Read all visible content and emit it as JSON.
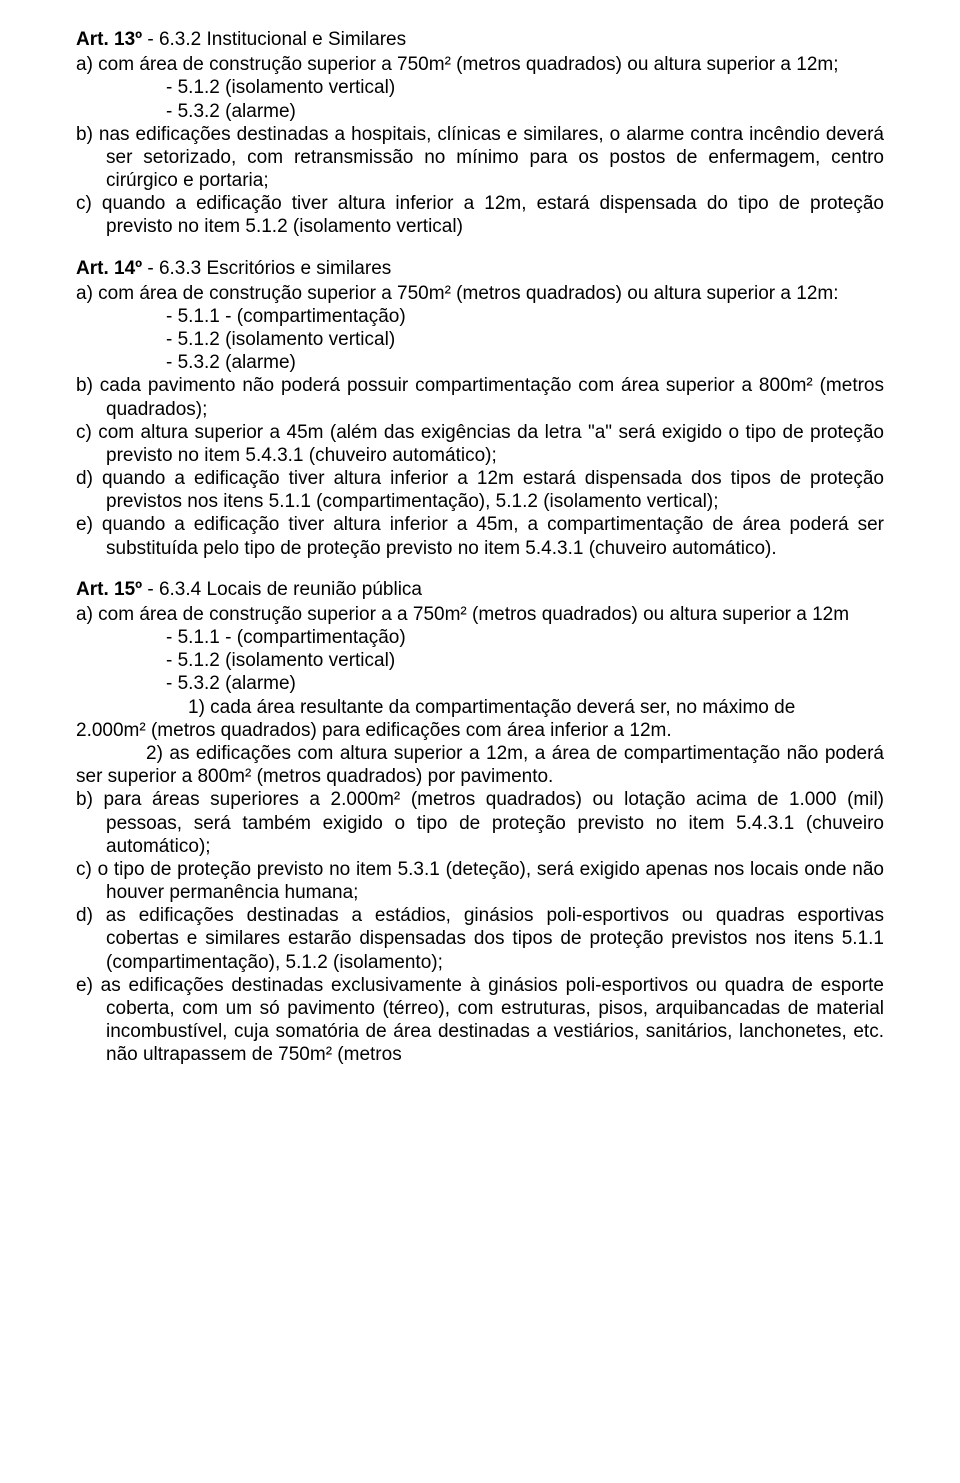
{
  "art13": {
    "heading_bold": "Art. 13º",
    "heading_rest": " - 6.3.2 Institucional e Similares",
    "a": "a) com área de construção superior a 750m² (metros quadrados) ou altura superior a 12m;",
    "a_d1": "-   5.1.2 (isolamento vertical)",
    "a_d2": "-   5.3.2 (alarme)",
    "b": "b) nas edificações destinadas a hospitais, clínicas e similares, o alarme contra incêndio deverá ser setorizado, com retransmissão no mínimo para os postos de enfermagem, centro cirúrgico e portaria;",
    "c": "c) quando a edificação tiver altura inferior a 12m, estará dispensada do tipo de proteção previsto no item 5.1.2 (isolamento vertical)"
  },
  "art14": {
    "heading_bold": "Art. 14º",
    "heading_rest": " - 6.3.3 Escritórios e similares",
    "a": "a) com área de construção superior a 750m² (metros quadrados) ou altura superior a 12m:",
    "a_d1": "-   5.1.1 - (compartimentação)",
    "a_d2": "-   5.1.2 (isolamento vertical)",
    "a_d3": "-   5.3.2 (alarme)",
    "b": "b) cada pavimento não poderá possuir compartimentação com área superior a 800m² (metros quadrados);",
    "c": "c) com altura superior a 45m (além das exigências da letra \"a\" será exigido o tipo de proteção previsto no item 5.4.3.1 (chuveiro automático);",
    "d": "d) quando a edificação tiver altura inferior a 12m estará dispensada dos tipos de proteção previstos nos itens 5.1.1 (compartimentação), 5.1.2 (isolamento vertical);",
    "e": "e) quando a edificação tiver altura inferior a 45m, a compartimentação de área poderá ser substituída pelo tipo de proteção previsto no item 5.4.3.1 (chuveiro automático)."
  },
  "art15": {
    "heading_bold": "Art. 15º",
    "heading_rest": " - 6.3.4 Locais de reunião pública",
    "a": "a) com área de construção superior a a 750m² (metros quadrados) ou altura superior a 12m",
    "a_d1": "-   5.1.1 - (compartimentação)",
    "a_d2": "-   5.1.2 (isolamento vertical)",
    "a_d3": "-   5.3.2 (alarme)",
    "n1a": "1) cada área resultante da compartimentação deverá ser, no máximo de",
    "n1b": "2.000m² (metros quadrados) para edificações com área inferior a 12m.",
    "n2": "2) as edificações com altura superior a 12m, a área de compartimentação não poderá ser superior a 800m² (metros quadrados) por pavimento.",
    "b": "b) para áreas superiores a 2.000m² (metros quadrados) ou lotação acima de 1.000 (mil) pessoas, será também exigido o tipo de proteção previsto no item 5.4.3.1 (chuveiro automático);",
    "c": "c) o tipo de proteção previsto no item 5.3.1 (deteção), será exigido apenas nos locais onde não houver permanência humana;",
    "d": "d) as edificações destinadas a estádios, ginásios poli-esportivos ou quadras esportivas cobertas e similares estarão dispensadas dos tipos de proteção previstos nos itens 5.1.1 (compartimentação), 5.1.2 (isolamento);",
    "e": "e) as edificações destinadas exclusivamente à ginásios poli-esportivos ou quadra de esporte coberta, com um só pavimento (térreo), com estruturas, pisos, arquibancadas de material incombustível, cuja somatória de área destinadas a vestiários, sanitários, lanchonetes, etc. não ultrapassem de 750m² (metros"
  }
}
